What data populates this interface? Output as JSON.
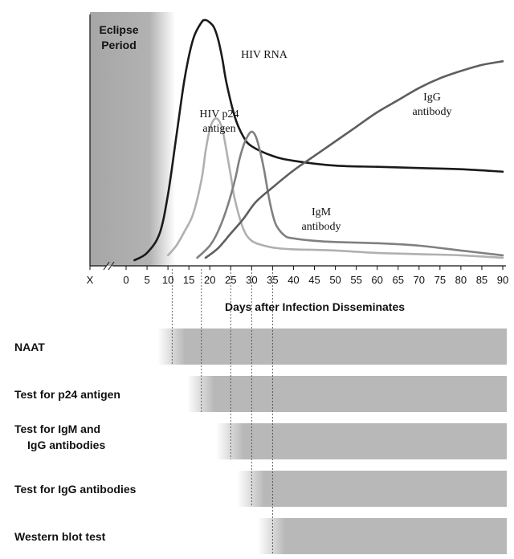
{
  "chart_data": {
    "type": "line",
    "xlabel": "Days after Infection Disseminates",
    "x_tick_labels": [
      "X",
      "0",
      "5",
      "10",
      "15",
      "20",
      "25",
      "30",
      "35",
      "40",
      "45",
      "50",
      "55",
      "60",
      "65",
      "70",
      "75",
      "80",
      "85",
      "90"
    ],
    "xlim": [
      0,
      90
    ],
    "eclipse_period": {
      "label": [
        "Eclipse",
        "Period"
      ],
      "start_day": 0,
      "end_day": 5
    },
    "series": [
      {
        "name": "HIV RNA",
        "label_lines": [
          "HIV RNA"
        ],
        "color": "#1a1a1a",
        "x": [
          2,
          5,
          8,
          10,
          12,
          14,
          16,
          18,
          19,
          20,
          21,
          22,
          23,
          24,
          26,
          28,
          30,
          35,
          40,
          50,
          60,
          70,
          80,
          90
        ],
        "y": [
          1,
          4,
          12,
          28,
          52,
          76,
          92,
          99,
          100,
          99,
          97,
          92,
          84,
          74,
          60,
          52,
          48,
          44,
          42,
          40,
          39.5,
          39,
          38.5,
          37.5
        ]
      },
      {
        "name": "HIV p24 antigen",
        "label_lines": [
          "HIV p24",
          "antigen"
        ],
        "color": "#b0b0b0",
        "x": [
          10,
          12,
          14,
          16,
          18,
          19,
          20,
          21,
          22,
          23,
          24,
          25,
          26,
          28,
          30,
          33,
          36,
          40,
          50,
          60,
          70,
          80,
          90
        ],
        "y": [
          3,
          7,
          13,
          20,
          34,
          46,
          55,
          59,
          59,
          55,
          46,
          36,
          26,
          14,
          9,
          7,
          6,
          5.5,
          5,
          4,
          3.5,
          3,
          2
        ]
      },
      {
        "name": "IgM antibody",
        "label_lines": [
          "IgM",
          "antibody"
        ],
        "color": "#808080",
        "x": [
          17,
          20,
          22,
          24,
          26,
          27,
          28,
          29,
          30,
          31,
          32,
          33,
          34,
          35,
          36,
          38,
          40,
          45,
          50,
          60,
          70,
          80,
          90
        ],
        "y": [
          2,
          7,
          13,
          22,
          34,
          42,
          48,
          52,
          54,
          52,
          46,
          38,
          28,
          20,
          15,
          11,
          10,
          9,
          8.5,
          8,
          7,
          5,
          3
        ]
      },
      {
        "name": "IgG antibody",
        "label_lines": [
          "IgG",
          "antibody"
        ],
        "color": "#5e5e5e",
        "x": [
          19,
          22,
          25,
          28,
          31,
          35,
          40,
          45,
          50,
          55,
          60,
          65,
          70,
          75,
          80,
          85,
          90
        ],
        "y": [
          2,
          6,
          12,
          18,
          25,
          31,
          38,
          44,
          50,
          56,
          62,
          67,
          72,
          76,
          79,
          81.5,
          83
        ]
      }
    ],
    "tests": [
      {
        "name": "NAAT",
        "label_lines": [
          "NAAT"
        ],
        "start_day": 11
      },
      {
        "name": "Test for p24 antigen",
        "label_lines": [
          "Test for p24 antigen"
        ],
        "start_day": 18
      },
      {
        "name": "Test for IgM and IgG antibodies",
        "label_lines": [
          "Test for IgM and",
          "IgG antibodies"
        ],
        "start_day": 25
      },
      {
        "name": "Test for IgG antibodies",
        "label_lines": [
          "Test for IgG antibodies"
        ],
        "start_day": 30
      },
      {
        "name": "Western blot test",
        "label_lines": [
          "Western blot test"
        ],
        "start_day": 35
      }
    ],
    "grid": false
  }
}
